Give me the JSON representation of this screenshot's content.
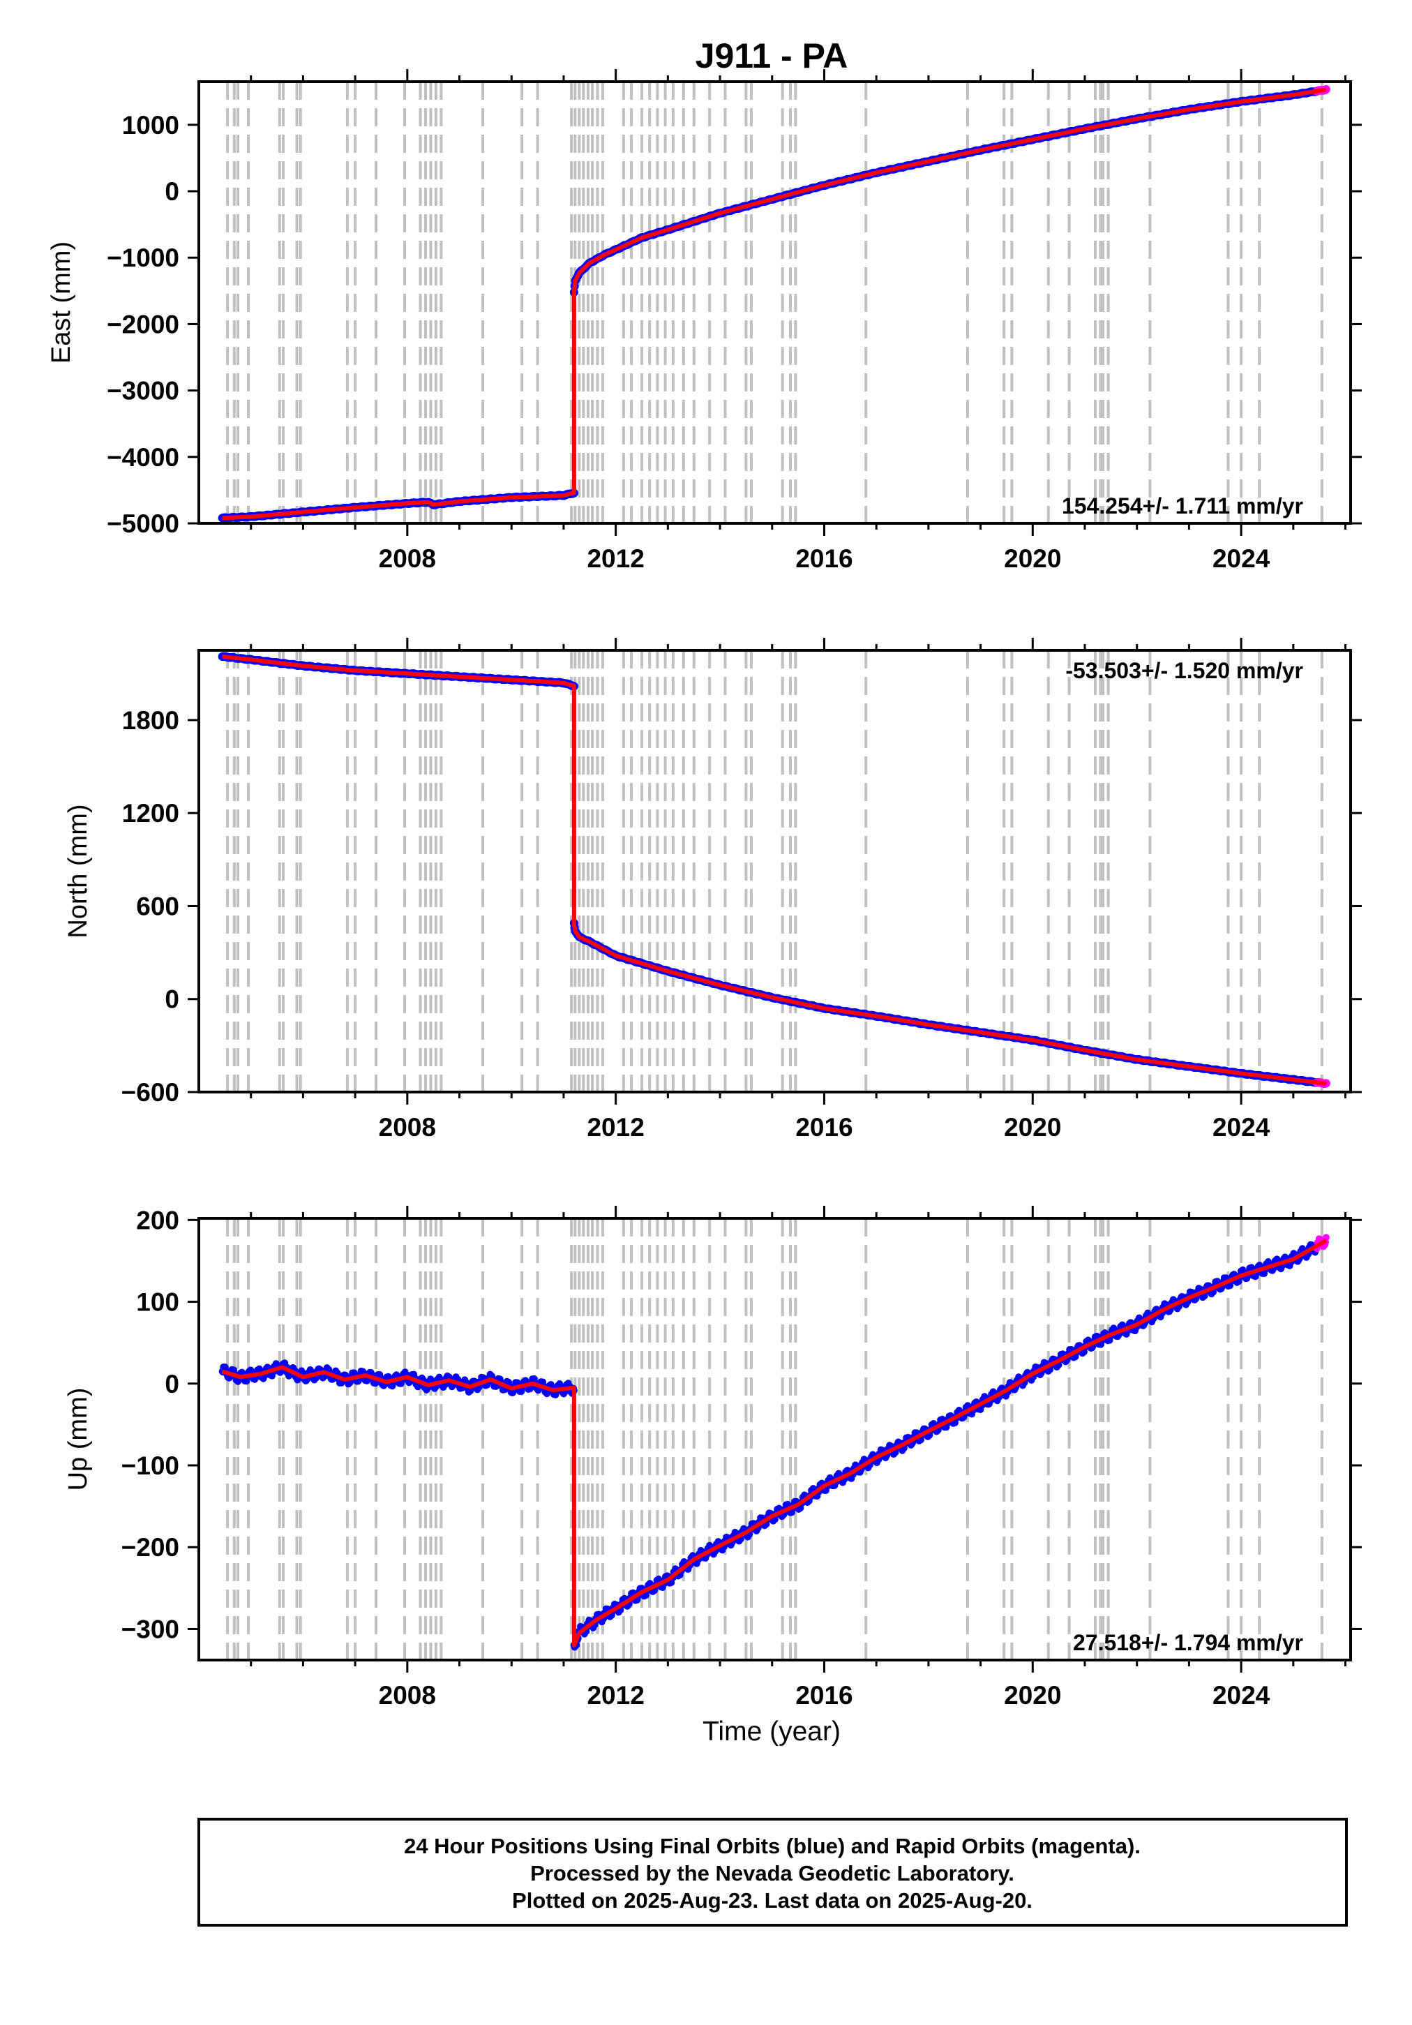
{
  "title": "J911 - PA",
  "xlabel": "Time (year)",
  "footer": {
    "line1": "24 Hour Positions Using Final Orbits (blue) and Rapid Orbits (magenta).",
    "line2": "Processed by the Nevada Geodetic Laboratory.",
    "line3": "Plotted on 2025-Aug-23. Last data on 2025-Aug-20."
  },
  "colors": {
    "final": "#0000ff",
    "rapid": "#ff00ff",
    "model": "#ff0000",
    "steps": "#c0c0c0",
    "axis": "#000000"
  },
  "step_epochs": [
    2004.55,
    2004.68,
    2004.75,
    2004.95,
    2005.55,
    2005.62,
    2005.88,
    2005.95,
    2006.85,
    2007.0,
    2007.4,
    2007.95,
    2008.25,
    2008.35,
    2008.45,
    2008.55,
    2008.65,
    2009.45,
    2010.2,
    2010.5,
    2011.15,
    2011.22,
    2011.3,
    2011.38,
    2011.47,
    2011.55,
    2011.65,
    2011.75,
    2012.15,
    2012.3,
    2012.5,
    2012.65,
    2012.8,
    2012.95,
    2013.1,
    2013.3,
    2013.5,
    2013.8,
    2014.1,
    2014.5,
    2014.6,
    2015.2,
    2015.35,
    2015.45,
    2016.8,
    2018.75,
    2019.45,
    2019.6,
    2020.3,
    2020.7,
    2021.2,
    2021.3,
    2021.35,
    2021.45,
    2022.25,
    2023.75,
    2024.0,
    2024.35,
    2025.55
  ],
  "chart_data": [
    {
      "type": "scatter",
      "component": "east",
      "ylabel": "East (mm)",
      "xlim": [
        2004.0,
        2026.1
      ],
      "ylim": [
        -5000,
        1650
      ],
      "xticks": [
        2008,
        2012,
        2016,
        2020,
        2024
      ],
      "yticks": [
        1000,
        0,
        -1000,
        -2000,
        -3000,
        -4000,
        -5000
      ],
      "ytick_labels": [
        "1000",
        "0",
        "−1000",
        "−2000",
        "−3000",
        "−4000",
        "−5000"
      ],
      "rate": "154.254+/- 1.711 mm/yr",
      "rate_position": "bottom-right",
      "series": [
        {
          "x": [
            2004.45,
            2005.0,
            2006.0,
            2007.0,
            2008.0,
            2008.4,
            2008.5,
            2009.0,
            2010.0,
            2011.0,
            2011.2
          ],
          "y": [
            -4920,
            -4900,
            -4830,
            -4760,
            -4700,
            -4680,
            -4720,
            -4670,
            -4610,
            -4580,
            -4540
          ]
        },
        {
          "x": [
            2011.2,
            2011.22,
            2011.3,
            2011.5,
            2011.8,
            2012.0,
            2012.5,
            2013.0,
            2014.0,
            2015.0,
            2016.0,
            2017.0,
            2018.0,
            2019.0,
            2020.0,
            2021.0,
            2022.0,
            2023.0,
            2024.0,
            2025.0,
            2025.63
          ],
          "y": [
            -1520,
            -1350,
            -1230,
            -1080,
            -950,
            -880,
            -700,
            -580,
            -330,
            -120,
            90,
            280,
            450,
            620,
            780,
            940,
            1090,
            1230,
            1350,
            1450,
            1530
          ]
        }
      ]
    },
    {
      "type": "scatter",
      "component": "north",
      "ylabel": "North (mm)",
      "xlim": [
        2004.0,
        2026.1
      ],
      "ylim": [
        -600,
        2250
      ],
      "xticks": [
        2008,
        2012,
        2016,
        2020,
        2024
      ],
      "yticks": [
        1800,
        1200,
        600,
        0,
        -600
      ],
      "ytick_labels": [
        "1800",
        "1200",
        "600",
        "0",
        "−600"
      ],
      "rate": "-53.503+/- 1.520 mm/yr",
      "rate_position": "top-right",
      "series": [
        {
          "x": [
            2004.45,
            2005.0,
            2006.0,
            2007.0,
            2008.0,
            2009.0,
            2010.0,
            2011.0,
            2011.2
          ],
          "y": [
            2210,
            2190,
            2150,
            2120,
            2100,
            2080,
            2060,
            2040,
            2020
          ]
        },
        {
          "x": [
            2011.2,
            2011.22,
            2011.3,
            2011.5,
            2012.0,
            2012.5,
            2013.0,
            2014.0,
            2015.0,
            2016.0,
            2017.0,
            2018.0,
            2019.0,
            2020.0,
            2021.0,
            2022.0,
            2023.0,
            2024.0,
            2025.0,
            2025.63
          ],
          "y": [
            490,
            440,
            400,
            370,
            280,
            230,
            180,
            90,
            10,
            -60,
            -110,
            -165,
            -215,
            -265,
            -330,
            -390,
            -435,
            -480,
            -520,
            -545
          ]
        }
      ]
    },
    {
      "type": "scatter",
      "component": "up",
      "ylabel": "Up (mm)",
      "xlim": [
        2004.0,
        2026.1
      ],
      "ylim": [
        -338,
        202
      ],
      "xticks": [
        2008,
        2012,
        2016,
        2020,
        2024
      ],
      "yticks": [
        200,
        100,
        0,
        -100,
        -200,
        -300
      ],
      "ytick_labels": [
        "200",
        "100",
        "0",
        "−100",
        "−200",
        "−300"
      ],
      "rate": "27.518+/- 1.794 mm/yr",
      "rate_position": "bottom-right",
      "series": [
        {
          "x": [
            2004.45,
            2004.8,
            2005.2,
            2005.6,
            2006.0,
            2006.4,
            2006.8,
            2007.2,
            2007.6,
            2008.0,
            2008.4,
            2008.8,
            2009.2,
            2009.6,
            2010.0,
            2010.4,
            2010.8,
            2011.2
          ],
          "y": [
            15,
            8,
            12,
            20,
            8,
            14,
            5,
            10,
            2,
            8,
            -2,
            4,
            -4,
            5,
            -6,
            0,
            -8,
            -5
          ]
        },
        {
          "x": [
            2011.2,
            2011.3,
            2011.6,
            2012.0,
            2012.5,
            2013.0,
            2013.5,
            2014.0,
            2014.5,
            2015.0,
            2015.5,
            2016.0,
            2016.5,
            2017.0,
            2017.5,
            2018.0,
            2018.5,
            2019.0,
            2019.5,
            2020.0,
            2020.5,
            2021.0,
            2021.5,
            2022.0,
            2022.5,
            2023.0,
            2023.5,
            2024.0,
            2024.5,
            2025.0,
            2025.63
          ],
          "y": [
            -320,
            -305,
            -290,
            -275,
            -255,
            -240,
            -215,
            -198,
            -182,
            -162,
            -148,
            -125,
            -110,
            -90,
            -75,
            -58,
            -42,
            -25,
            -8,
            12,
            28,
            45,
            60,
            72,
            90,
            105,
            118,
            132,
            142,
            152,
            175
          ]
        }
      ]
    }
  ]
}
